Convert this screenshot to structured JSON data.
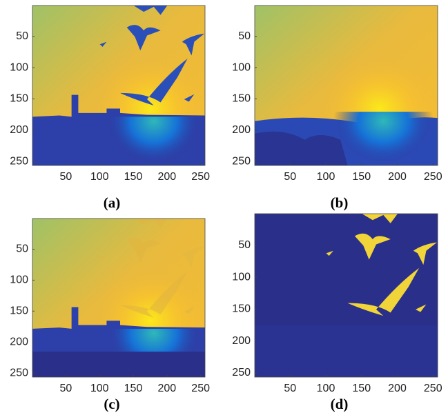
{
  "panels": [
    {
      "label": "(a)",
      "xlim": [
        0.5,
        256.5
      ],
      "ylim": [
        0.5,
        256.5
      ],
      "xticks": [
        50,
        100,
        150,
        200,
        250
      ],
      "yticks": [
        50,
        100,
        150,
        200,
        250
      ]
    },
    {
      "label": "(b)",
      "xlim": [
        0.5,
        256.5
      ],
      "ylim": [
        0.5,
        256.5
      ],
      "xticks": [
        50,
        100,
        150,
        200,
        250
      ],
      "yticks": [
        50,
        100,
        150,
        200,
        250
      ]
    },
    {
      "label": "(c)",
      "xlim": [
        0.5,
        256.5
      ],
      "ylim": [
        0.5,
        256.5
      ],
      "xticks": [
        50,
        100,
        150,
        200,
        250
      ],
      "yticks": [
        50,
        100,
        150,
        200,
        250
      ]
    },
    {
      "label": "(d)",
      "xlim": [
        0.5,
        256.5
      ],
      "ylim": [
        0.5,
        256.5
      ],
      "xticks": [
        50,
        100,
        150,
        200,
        250
      ],
      "yticks": [
        50,
        100,
        150,
        200,
        250
      ]
    }
  ]
}
